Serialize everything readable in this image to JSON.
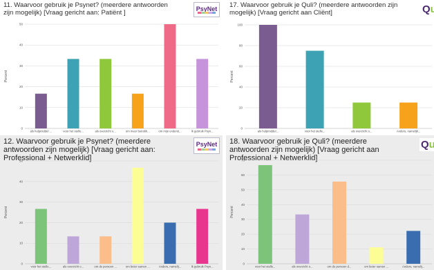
{
  "chart_data": [
    {
      "type": "bar",
      "title": "11. Waarvoor gebruik je Psynet? (meerdere antwoorden zijn mogelijk) [Vraag gericht aan: Patiënt ]",
      "logo": "PsyNet",
      "ylabel": "Percent",
      "ylim": [
        0,
        50
      ],
      "yticks": [
        0,
        10,
        20,
        30,
        40,
        50
      ],
      "grid": true,
      "categories": [
        "als hulpmiddel ...",
        "voor het stelle...",
        "als overzicht o...",
        "om meer betrokk...",
        "om mijn underst...",
        "Ik gebruik Psyn..."
      ],
      "values": [
        16.67,
        33.33,
        33.33,
        16.67,
        50,
        33.33
      ],
      "colors": [
        "#7b5c91",
        "#3ea2b5",
        "#8fc83a",
        "#f7a21b",
        "#ef6a87",
        "#c594db"
      ]
    },
    {
      "type": "bar",
      "title": "17. Waarvoor gebruik je Quli? (meerdere antwoorden zijn mogelijk) [Vraag gericht aan Cliënt]",
      "logo": "Quli",
      "ylabel": "Percent",
      "ylim": [
        0,
        100
      ],
      "yticks": [
        0,
        20,
        40,
        60,
        80,
        100
      ],
      "grid": true,
      "categories": [
        "als hulpmiddel...",
        "voor het stelle...",
        "als overzicht o...",
        "Anders, namelijk..."
      ],
      "values": [
        100,
        75,
        25,
        25
      ],
      "colors": [
        "#7b5c91",
        "#3ea2b5",
        "#8fc83a",
        "#f7a21b"
      ]
    },
    {
      "type": "bar",
      "title": "12. Waarvoor gebruik je Psynet? (meerdere antwoorden zijn mogelijk) [Vraag gericht aan: Professional + Netwerklid]",
      "logo": "PsyNet",
      "ylabel": "Percent",
      "ylim": [
        0,
        50
      ],
      "yticks": [
        0,
        10,
        20,
        30,
        40,
        50
      ],
      "grid": true,
      "categories": [
        "voor het stelle...",
        "als overzicht o...",
        "om de persoon ...",
        "om beter samen ...",
        "Anders, namelij...",
        "Ik gebruik Psyn..."
      ],
      "values": [
        26.67,
        13.33,
        13.33,
        46.67,
        20,
        26.67
      ],
      "colors": [
        "#7cc47a",
        "#bfa6d8",
        "#fbbe8a",
        "#fdfd96",
        "#3a6db0",
        "#e8368f"
      ]
    },
    {
      "type": "bar",
      "title": "18. Waarvoor gebruik je Quli? (meerdere antwoorden zijn mogelijk) [Vraag gericht aan Professional + Netwerklid]",
      "logo": "Quli",
      "ylabel": "Percent",
      "ylim": [
        0,
        70
      ],
      "yticks": [
        0,
        10,
        20,
        30,
        40,
        50,
        60,
        70
      ],
      "grid": true,
      "categories": [
        "voor het stelle...",
        "als overzicht o...",
        "om de persoon d...",
        "om beter samen ...",
        "Anders, namelij..."
      ],
      "values": [
        66.67,
        33.33,
        55.56,
        11.11,
        22.22
      ],
      "colors": [
        "#7cc47a",
        "#bfa6d8",
        "#fbbe8a",
        "#fdfd96",
        "#3a6db0"
      ]
    }
  ]
}
